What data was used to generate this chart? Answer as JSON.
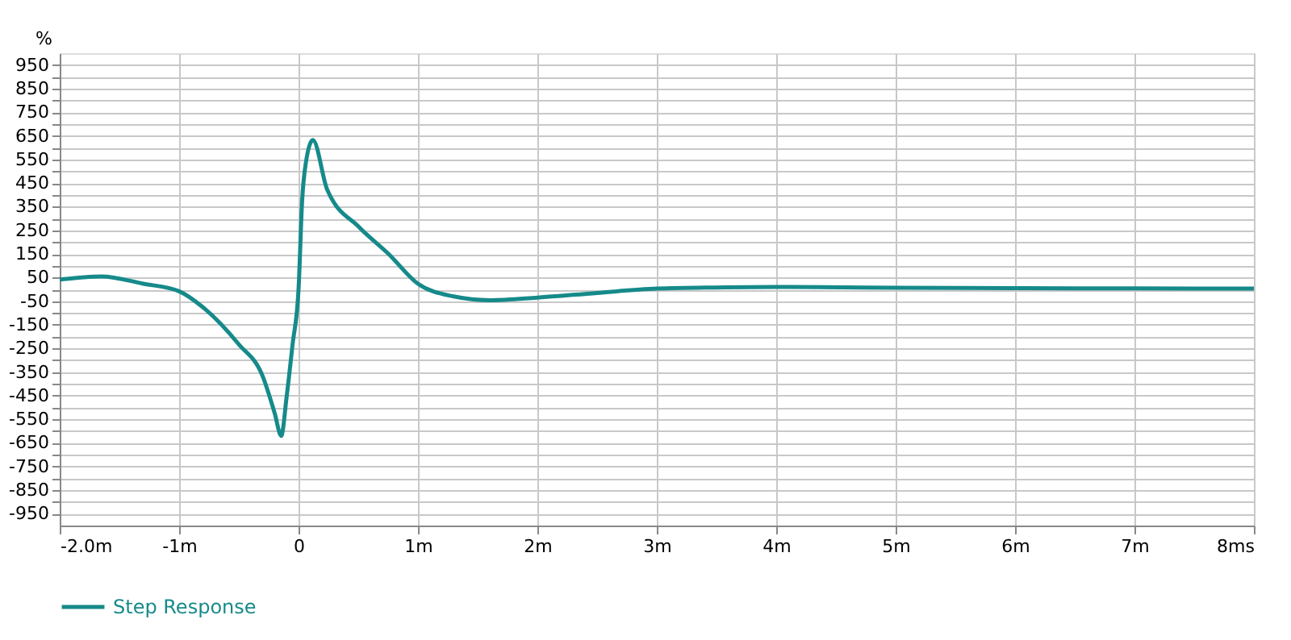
{
  "chart_data": {
    "type": "line",
    "ylabel": "%",
    "x": [
      -2.0,
      -1.65,
      -1.3,
      -1.0,
      -0.8,
      -0.5,
      -0.3,
      -0.2,
      -0.145,
      -0.1,
      -0.05,
      0.0,
      0.03,
      0.06,
      0.12,
      0.24,
      0.51,
      0.75,
      1.0,
      1.3,
      1.6,
      2.0,
      2.5,
      3.0,
      3.5,
      4.0,
      5.0,
      6.0,
      7.0,
      8.0
    ],
    "series": [
      {
        "name": "Step Response",
        "color": "#168a8a",
        "values": [
          42,
          55,
          24,
          -8,
          -76,
          -233,
          -368,
          -524,
          -620,
          -456,
          -233,
          0,
          375,
          532,
          632,
          422,
          262,
          152,
          24,
          -30,
          -46,
          -35,
          -15,
          3,
          8,
          10,
          7,
          5,
          4,
          3
        ]
      }
    ],
    "xlim": [
      -2.0,
      8.0
    ],
    "xticks": [
      {
        "value": -2.0,
        "label": "-2.0m"
      },
      {
        "value": -1,
        "label": "-1m"
      },
      0,
      {
        "value": 1,
        "label": "1m"
      },
      {
        "value": 2,
        "label": "2m"
      },
      {
        "value": 3,
        "label": "3m"
      },
      {
        "value": 4,
        "label": "4m"
      },
      {
        "value": 5,
        "label": "5m"
      },
      {
        "value": 6,
        "label": "6m"
      },
      {
        "value": 7,
        "label": "7m"
      },
      {
        "value": 8,
        "label": "8ms"
      }
    ],
    "ylim": [
      -1000,
      1000
    ],
    "yticks": [
      -950,
      {
        "value": -900,
        "label": null
      },
      -850,
      {
        "value": -800,
        "label": null
      },
      -750,
      {
        "value": -700,
        "label": null
      },
      -650,
      {
        "value": -600,
        "label": null
      },
      -550,
      {
        "value": -500,
        "label": null
      },
      -450,
      {
        "value": -400,
        "label": null
      },
      -350,
      {
        "value": -300,
        "label": null
      },
      -250,
      {
        "value": -200,
        "label": null
      },
      -150,
      {
        "value": -100,
        "label": null
      },
      -50,
      {
        "value": 0,
        "label": null
      },
      50,
      {
        "value": 100,
        "label": null
      },
      150,
      {
        "value": 200,
        "label": null
      },
      250,
      {
        "value": 300,
        "label": null
      },
      350,
      {
        "value": 400,
        "label": null
      },
      450,
      {
        "value": 500,
        "label": null
      },
      550,
      {
        "value": 600,
        "label": null
      },
      650,
      {
        "value": 700,
        "label": null
      },
      750,
      {
        "value": 800,
        "label": null
      },
      850,
      {
        "value": 900,
        "label": null
      },
      950
    ],
    "grid": true,
    "legend": "bottom",
    "marker": "none",
    "line_style": "solid"
  }
}
